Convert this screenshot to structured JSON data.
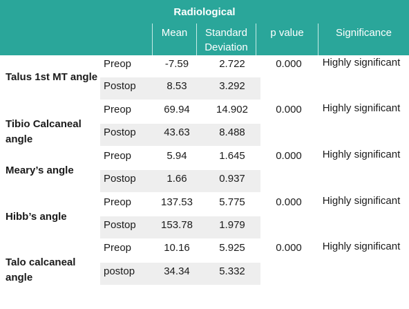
{
  "table": {
    "title": "Radiological",
    "columns": [
      "",
      "Mean",
      "Standard Deviation",
      "p value",
      "Significance"
    ],
    "rows": [
      {
        "label": "Talus 1st MT angle",
        "pre": {
          "kind": "Preop",
          "mean": "-7.59",
          "sd": "2.722"
        },
        "post": {
          "kind": "Postop",
          "mean": "8.53",
          "sd": "3.292"
        },
        "p": "0.000",
        "significance": "Highly significant"
      },
      {
        "label": "Tibio Calcaneal angle",
        "pre": {
          "kind": "Preop",
          "mean": "69.94",
          "sd": "14.902"
        },
        "post": {
          "kind": "Postop",
          "mean": "43.63",
          "sd": "8.488"
        },
        "p": "0.000",
        "significance": "Highly significant"
      },
      {
        "label": "Meary’s angle",
        "pre": {
          "kind": "Preop",
          "mean": "5.94",
          "sd": "1.645"
        },
        "post": {
          "kind": "Postop",
          "mean": "1.66",
          "sd": "0.937"
        },
        "p": "0.000",
        "significance": "Highly significant"
      },
      {
        "label": "Hibb’s angle",
        "pre": {
          "kind": "Preop",
          "mean": "137.53",
          "sd": "5.775"
        },
        "post": {
          "kind": "Postop",
          "mean": "153.78",
          "sd": "1.979"
        },
        "p": "0.000",
        "significance": "Highly significant"
      },
      {
        "label": "Talo calcaneal angle",
        "pre": {
          "kind": "Preop",
          "mean": "10.16",
          "sd": "5.925"
        },
        "post": {
          "kind": "postop",
          "mean": "34.34",
          "sd": "5.332"
        },
        "p": "0.000",
        "significance": "Highly significant"
      }
    ]
  },
  "colors": {
    "header": "#2aa69a",
    "shade": "#eeeeee"
  }
}
